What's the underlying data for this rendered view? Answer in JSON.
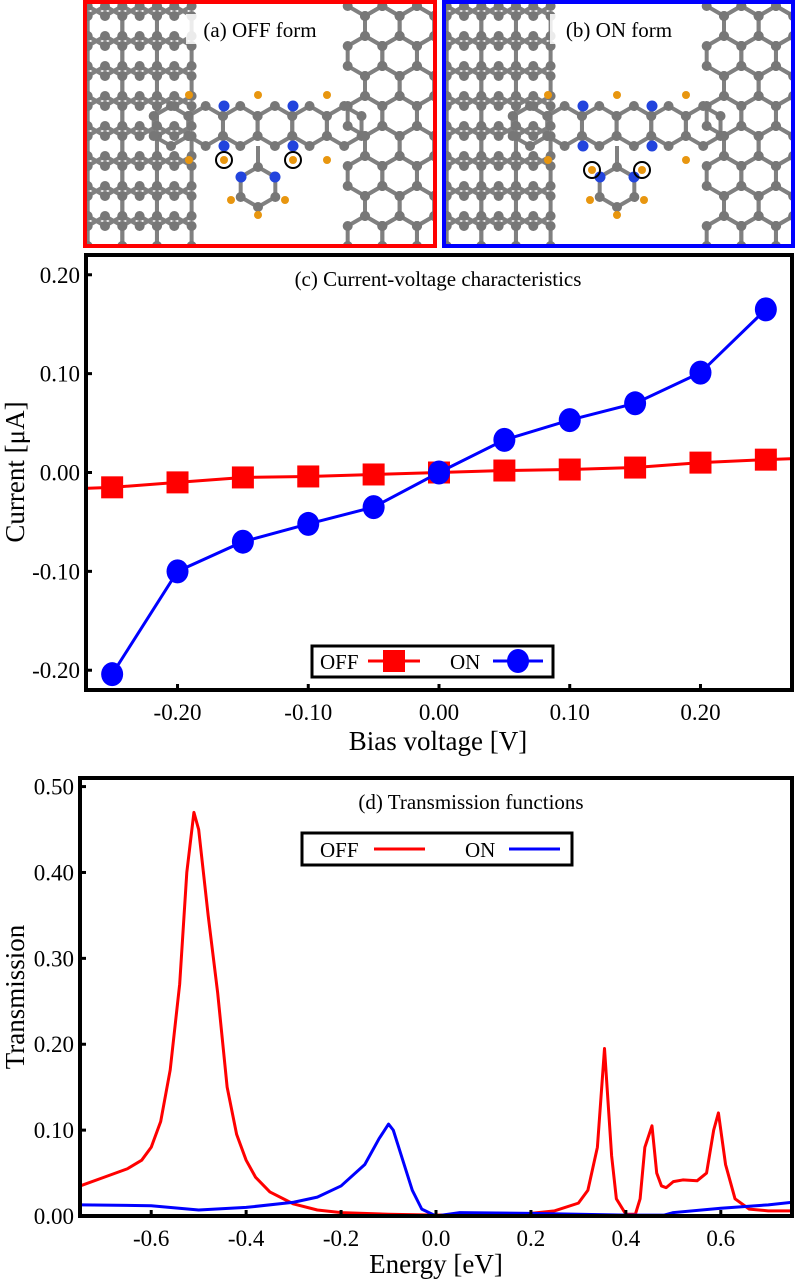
{
  "panels": {
    "a": {
      "title": "(a) OFF form",
      "border_color": "#ff0000"
    },
    "b": {
      "title": "(b) ON form",
      "border_color": "#0000ff"
    }
  },
  "atom_colors": {
    "carbon": "#777777",
    "nitrogen": "#2244dd",
    "hydrogen": "#e8960f"
  },
  "chart_data": [
    {
      "type": "line",
      "title": "(c) Current-voltage characteristics",
      "xlabel": "Bias voltage [V]",
      "ylabel": "Current [μA]",
      "xlim": [
        -0.27,
        0.27
      ],
      "ylim": [
        -0.22,
        0.22
      ],
      "xticks": [
        "-0.20",
        "-0.10",
        "0.00",
        "0.10",
        "0.20"
      ],
      "xtick_values": [
        -0.2,
        -0.1,
        0,
        0.1,
        0.2
      ],
      "yticks": [
        "-0.20",
        "-0.10",
        "0.00",
        "0.10",
        "0.20"
      ],
      "ytick_values": [
        -0.2,
        -0.1,
        0,
        0.1,
        0.2
      ],
      "legend": "bottom-center",
      "grid": false,
      "x": [
        -0.25,
        -0.2,
        -0.15,
        -0.1,
        -0.05,
        0,
        0.05,
        0.1,
        0.15,
        0.2,
        0.25
      ],
      "series": [
        {
          "name": "OFF",
          "color": "#ff0000",
          "marker": "square",
          "values": [
            -0.015,
            -0.01,
            -0.005,
            -0.004,
            -0.002,
            0,
            0.002,
            0.003,
            0.005,
            0.01,
            0.013
          ]
        },
        {
          "name": "ON",
          "color": "#0000ff",
          "marker": "circle",
          "values": [
            -0.204,
            -0.1,
            -0.07,
            -0.052,
            -0.035,
            0,
            0.033,
            0.053,
            0.07,
            0.101,
            0.165
          ]
        }
      ]
    },
    {
      "type": "line",
      "title": "(d) Transmission functions",
      "xlabel": "Energy [eV]",
      "ylabel": "Transmission",
      "xlim": [
        -0.75,
        0.75
      ],
      "ylim": [
        0,
        0.51
      ],
      "xticks": [
        "-0.6",
        "-0.4",
        "-0.2",
        "0.0",
        "0.2",
        "0.4",
        "0.6"
      ],
      "xtick_values": [
        -0.6,
        -0.4,
        -0.2,
        0,
        0.2,
        0.4,
        0.6
      ],
      "yticks": [
        "0.00",
        "0.10",
        "0.20",
        "0.30",
        "0.40",
        "0.50"
      ],
      "ytick_values": [
        0,
        0.1,
        0.2,
        0.3,
        0.4,
        0.5
      ],
      "legend": "top-left",
      "grid": false,
      "series": [
        {
          "name": "OFF",
          "color": "#ff0000",
          "points": [
            [
              -0.75,
              0.035
            ],
            [
              -0.7,
              0.045
            ],
            [
              -0.65,
              0.055
            ],
            [
              -0.62,
              0.065
            ],
            [
              -0.6,
              0.08
            ],
            [
              -0.58,
              0.11
            ],
            [
              -0.56,
              0.17
            ],
            [
              -0.54,
              0.27
            ],
            [
              -0.525,
              0.4
            ],
            [
              -0.51,
              0.47
            ],
            [
              -0.5,
              0.45
            ],
            [
              -0.48,
              0.35
            ],
            [
              -0.46,
              0.26
            ],
            [
              -0.44,
              0.15
            ],
            [
              -0.42,
              0.095
            ],
            [
              -0.4,
              0.065
            ],
            [
              -0.38,
              0.045
            ],
            [
              -0.35,
              0.028
            ],
            [
              -0.3,
              0.014
            ],
            [
              -0.25,
              0.007
            ],
            [
              -0.2,
              0.004
            ],
            [
              -0.1,
              0.002
            ],
            [
              0,
              0.001
            ],
            [
              0.1,
              0.002
            ],
            [
              0.2,
              0.003
            ],
            [
              0.25,
              0.006
            ],
            [
              0.3,
              0.015
            ],
            [
              0.32,
              0.03
            ],
            [
              0.34,
              0.08
            ],
            [
              0.355,
              0.195
            ],
            [
              0.37,
              0.07
            ],
            [
              0.38,
              0.02
            ],
            [
              0.4,
              0.002
            ],
            [
              0.42,
              0.002
            ],
            [
              0.43,
              0.02
            ],
            [
              0.44,
              0.08
            ],
            [
              0.455,
              0.105
            ],
            [
              0.465,
              0.05
            ],
            [
              0.475,
              0.035
            ],
            [
              0.485,
              0.033
            ],
            [
              0.5,
              0.04
            ],
            [
              0.52,
              0.042
            ],
            [
              0.55,
              0.041
            ],
            [
              0.57,
              0.05
            ],
            [
              0.585,
              0.1
            ],
            [
              0.595,
              0.12
            ],
            [
              0.61,
              0.06
            ],
            [
              0.63,
              0.02
            ],
            [
              0.66,
              0.008
            ],
            [
              0.7,
              0.006
            ],
            [
              0.75,
              0.006
            ]
          ]
        },
        {
          "name": "ON",
          "color": "#0000ff",
          "points": [
            [
              -0.75,
              0.013
            ],
            [
              -0.6,
              0.012
            ],
            [
              -0.5,
              0.007
            ],
            [
              -0.4,
              0.01
            ],
            [
              -0.3,
              0.016
            ],
            [
              -0.25,
              0.022
            ],
            [
              -0.2,
              0.035
            ],
            [
              -0.15,
              0.06
            ],
            [
              -0.12,
              0.09
            ],
            [
              -0.1,
              0.107
            ],
            [
              -0.09,
              0.1
            ],
            [
              -0.07,
              0.065
            ],
            [
              -0.05,
              0.03
            ],
            [
              -0.03,
              0.008
            ],
            [
              0,
              0
            ],
            [
              0.05,
              0.004
            ],
            [
              0.2,
              0.003
            ],
            [
              0.4,
              0.001
            ],
            [
              0.48,
              0.001
            ],
            [
              0.5,
              0.004
            ],
            [
              0.6,
              0.009
            ],
            [
              0.7,
              0.013
            ],
            [
              0.75,
              0.016
            ]
          ]
        }
      ]
    }
  ]
}
